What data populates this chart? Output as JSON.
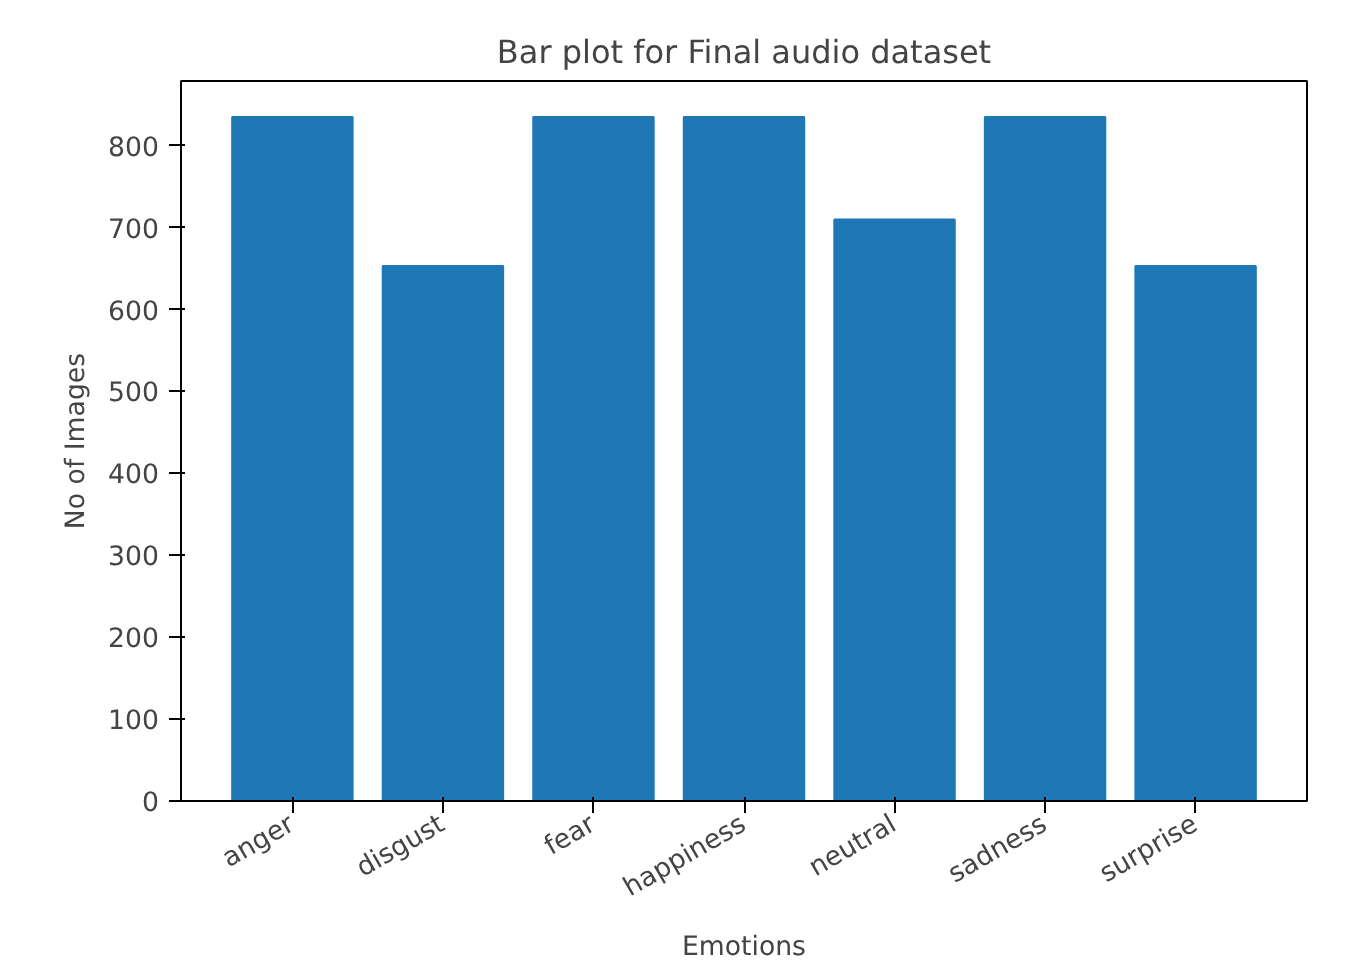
{
  "chart_data": {
    "type": "bar",
    "title": "Bar plot for Final audio dataset",
    "xlabel": "Emotions",
    "ylabel": "No of Images",
    "categories": [
      "anger",
      "disgust",
      "fear",
      "happiness",
      "neutral",
      "sadness",
      "surprise"
    ],
    "values": [
      835,
      653,
      835,
      835,
      710,
      835,
      653
    ],
    "color": "#1f77b4",
    "ylim": [
      0,
      879
    ],
    "yticks": [
      0,
      100,
      200,
      300,
      400,
      500,
      600,
      700,
      800
    ],
    "grid": false
  }
}
